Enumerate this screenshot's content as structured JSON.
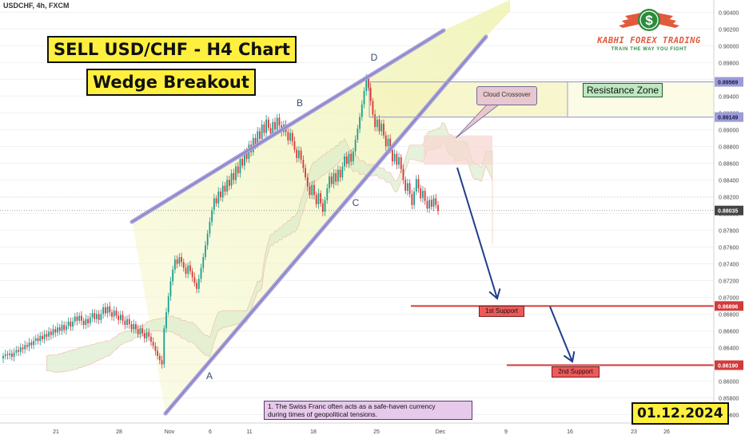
{
  "header": {
    "symbol_label": "USDCHF, 4h, FXCM"
  },
  "titles": {
    "main": "SELL USD/CHF - H4 Chart",
    "pattern": "Wedge Breakout"
  },
  "brand": {
    "name": "KABHI FOREX TRADING",
    "tagline": "TRAIN THE WAY YOU FIGHT",
    "logo_symbol": "$",
    "colors": {
      "primary": "#e25a3c",
      "accent": "#2e8b3d"
    }
  },
  "annotations": {
    "points": [
      {
        "label": "A",
        "x": "Nov 4 12:00",
        "y": 0.8618
      },
      {
        "label": "B",
        "x": "Nov 14 12:00",
        "y": 0.892
      },
      {
        "label": "C",
        "x": "Nov 22 12:00",
        "y": 0.8813
      },
      {
        "label": "D",
        "x": "Nov 25 04:00",
        "y": 0.8975
      }
    ],
    "cloud_crossover": "Cloud Crossover",
    "resistance_zone": "Resistance Zone",
    "support_1": "1st Support",
    "support_2": "2nd Support",
    "note_line1": "1. The Swiss Franc often acts as a safe-haven currency",
    "note_line2": "during times of geopolitical tensions.",
    "date": "01.12.2024"
  },
  "chart_data": {
    "type": "candlestick",
    "y_axis": {
      "ticks": [
        "0.90400",
        "0.90200",
        "0.90000",
        "0.89800",
        "0.89600",
        "0.89400",
        "0.89200",
        "0.89000",
        "0.88800",
        "0.88600",
        "0.88400",
        "0.88200",
        "0.88000",
        "0.87800",
        "0.87600",
        "0.87400",
        "0.87200",
        "0.87000",
        "0.86800",
        "0.86600",
        "0.86400",
        "0.86200",
        "0.86000",
        "0.85800",
        "0.85600"
      ],
      "ylim": [
        0.855,
        0.9045
      ],
      "highlighted": [
        {
          "label": "0.89569",
          "value": 0.89569,
          "color": "#9c9cd8"
        },
        {
          "label": "0.89149",
          "value": 0.89149,
          "color": "#9c9cd8"
        },
        {
          "label": "0.88035",
          "value": 0.88035,
          "color": "#444444"
        },
        {
          "label": "0.86896",
          "value": 0.86896,
          "color": "#d33a3a"
        },
        {
          "label": "0.86190",
          "value": 0.8619,
          "color": "#d33a3a"
        }
      ]
    },
    "x_axis": {
      "ticks": [
        "21",
        "28",
        "Nov",
        "6",
        "11",
        "18",
        "25",
        "Dec",
        "9",
        "16",
        "23",
        "26"
      ]
    },
    "closes": [
      0.863,
      0.8632,
      0.8631,
      0.8633,
      0.8629,
      0.8634,
      0.8637,
      0.8635,
      0.864,
      0.8638,
      0.8643,
      0.8641,
      0.8646,
      0.8643,
      0.8648,
      0.8651,
      0.8648,
      0.8654,
      0.865,
      0.8656,
      0.8653,
      0.8659,
      0.8655,
      0.8662,
      0.8658,
      0.8664,
      0.866,
      0.8667,
      0.8661,
      0.8666,
      0.8671,
      0.8665,
      0.8671,
      0.8677,
      0.8672,
      0.8678,
      0.8672,
      0.8667,
      0.8674,
      0.8669,
      0.8676,
      0.8681,
      0.8674,
      0.868,
      0.8673,
      0.868,
      0.8688,
      0.8681,
      0.8689,
      0.8682,
      0.8677,
      0.8684,
      0.8678,
      0.8673,
      0.8679,
      0.8672,
      0.8667,
      0.8674,
      0.8668,
      0.8662,
      0.8668,
      0.8662,
      0.8656,
      0.8663,
      0.8657,
      0.8651,
      0.8658,
      0.8653,
      0.8647,
      0.8642,
      0.8636,
      0.863,
      0.8625,
      0.862,
      0.8663,
      0.8682,
      0.8701,
      0.8719,
      0.8733,
      0.8745,
      0.874,
      0.8748,
      0.8742,
      0.8735,
      0.8728,
      0.8738,
      0.8731,
      0.8724,
      0.8717,
      0.871,
      0.8722,
      0.8735,
      0.8748,
      0.8762,
      0.8776,
      0.879,
      0.8804,
      0.8818,
      0.8812,
      0.8826,
      0.8819,
      0.8833,
      0.8826,
      0.884,
      0.8833,
      0.8848,
      0.884,
      0.8856,
      0.8848,
      0.8865,
      0.8857,
      0.8873,
      0.8865,
      0.8882,
      0.8873,
      0.889,
      0.8882,
      0.8898,
      0.8889,
      0.8906,
      0.8896,
      0.8912,
      0.8902,
      0.8895,
      0.8909,
      0.89,
      0.8914,
      0.8905,
      0.8897,
      0.8906,
      0.8897,
      0.8887,
      0.8896,
      0.8886,
      0.8876,
      0.8866,
      0.8875,
      0.8864,
      0.8854,
      0.8843,
      0.8832,
      0.8822,
      0.8834,
      0.8822,
      0.8811,
      0.8824,
      0.8812,
      0.8802,
      0.8816,
      0.883,
      0.8844,
      0.8835,
      0.8848,
      0.8838,
      0.8852,
      0.8843,
      0.8856,
      0.8868,
      0.8859,
      0.8871,
      0.8862,
      0.8874,
      0.8888,
      0.8901,
      0.8915,
      0.893,
      0.8946,
      0.8961,
      0.895,
      0.8934,
      0.8918,
      0.8903,
      0.8912,
      0.8898,
      0.8907,
      0.8893,
      0.888,
      0.8889,
      0.8876,
      0.8862,
      0.8871,
      0.8858,
      0.8867,
      0.8853,
      0.884,
      0.8827,
      0.8836,
      0.8823,
      0.881,
      0.8826,
      0.8841,
      0.883,
      0.8818,
      0.8827,
      0.8815,
      0.8806,
      0.8816,
      0.8808,
      0.8818,
      0.881,
      0.8803
    ],
    "ichimoku_cloud": "visible",
    "grid": true
  }
}
